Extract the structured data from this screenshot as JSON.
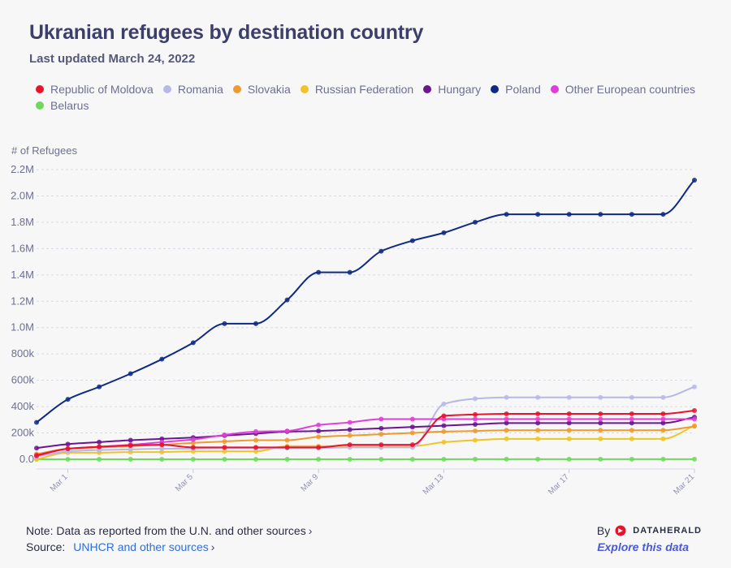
{
  "header": {
    "title": "Ukranian refugees by destination country",
    "subtitle": "Last updated March 24, 2022"
  },
  "y_unit_label": "# of Refugees",
  "footer": {
    "note": "Note: Data as reported from the U.N. and other sources",
    "source_label": "Source:",
    "source_link": "UNHCR and other sources",
    "by_label": "By",
    "brand": "DATAHERALD",
    "explore": "Explore this data",
    "chevron": "›"
  },
  "chart_data": {
    "type": "line",
    "title": "Ukranian refugees by destination country",
    "subtitle": "Last updated March 24, 2022",
    "ylabel": "# of Refugees",
    "ylim": [
      0,
      2200000
    ],
    "yticks": [
      0,
      200000,
      400000,
      600000,
      800000,
      1000000,
      1200000,
      1400000,
      1600000,
      1800000,
      2000000,
      2200000
    ],
    "ytick_labels": [
      "0.0",
      "200k",
      "400k",
      "600k",
      "800k",
      "1.0M",
      "1.2M",
      "1.4M",
      "1.6M",
      "1.8M",
      "2.0M",
      "2.2M"
    ],
    "x": [
      "Feb 28",
      "Mar 1",
      "Mar 2",
      "Mar 3",
      "Mar 4",
      "Mar 5",
      "Mar 6",
      "Mar 7",
      "Mar 8",
      "Mar 9",
      "Mar 10",
      "Mar 11",
      "Mar 12",
      "Mar 13",
      "Mar 14",
      "Mar 15",
      "Mar 16",
      "Mar 17",
      "Mar 18",
      "Mar 19",
      "Mar 20",
      "Mar 21"
    ],
    "xtick_labels": [
      "Mar 1",
      "Mar 5",
      "Mar 9",
      "Mar 13",
      "Mar 17",
      "Mar 21"
    ],
    "xtick_indices": [
      1,
      5,
      9,
      13,
      17,
      21
    ],
    "grid": true,
    "legend_position": "top",
    "series": [
      {
        "name": "Republic of Moldova",
        "color": "#e8132c",
        "values": [
          30000,
          80000,
          95000,
          105000,
          110000,
          90000,
          90000,
          90000,
          90000,
          90000,
          110000,
          110000,
          110000,
          330000,
          340000,
          345000,
          345000,
          345000,
          345000,
          345000,
          345000,
          370000
        ]
      },
      {
        "name": "Romania",
        "color": "#b8b8e8",
        "values": [
          20000,
          60000,
          70000,
          75000,
          80000,
          80000,
          85000,
          85000,
          85000,
          85000,
          90000,
          90000,
          90000,
          420000,
          460000,
          470000,
          470000,
          470000,
          470000,
          470000,
          470000,
          550000
        ]
      },
      {
        "name": "Slovakia",
        "color": "#ee9a2e",
        "values": [
          40000,
          80000,
          90000,
          100000,
          110000,
          125000,
          135000,
          145000,
          145000,
          170000,
          180000,
          190000,
          200000,
          210000,
          215000,
          220000,
          220000,
          220000,
          220000,
          220000,
          220000,
          250000
        ]
      },
      {
        "name": "Russian Federation",
        "color": "#f0c428",
        "values": [
          0,
          50000,
          50000,
          55000,
          55000,
          60000,
          60000,
          60000,
          100000,
          100000,
          100000,
          100000,
          100000,
          130000,
          145000,
          155000,
          155000,
          155000,
          155000,
          155000,
          155000,
          255000
        ]
      },
      {
        "name": "Hungary",
        "color": "#6a1690",
        "values": [
          85000,
          115000,
          130000,
          145000,
          155000,
          165000,
          180000,
          195000,
          210000,
          215000,
          225000,
          235000,
          245000,
          255000,
          265000,
          275000,
          275000,
          275000,
          275000,
          275000,
          275000,
          320000
        ]
      },
      {
        "name": "Poland",
        "color": "#0e2a84",
        "values": [
          280000,
          455000,
          550000,
          650000,
          760000,
          885000,
          1030000,
          1030000,
          1210000,
          1420000,
          1420000,
          1580000,
          1660000,
          1720000,
          1800000,
          1860000,
          1860000,
          1860000,
          1860000,
          1860000,
          1860000,
          2120000
        ]
      },
      {
        "name": "Other European countries",
        "color": "#e03ed8",
        "values": [
          25000,
          80000,
          95000,
          110000,
          130000,
          150000,
          185000,
          210000,
          215000,
          260000,
          280000,
          305000,
          305000,
          305000,
          305000,
          305000,
          305000,
          305000,
          305000,
          305000,
          305000,
          305000
        ]
      },
      {
        "name": "Belarus",
        "color": "#6fd95c",
        "values": [
          0,
          0,
          0,
          0,
          0,
          0,
          0,
          0,
          0,
          0,
          0,
          0,
          0,
          0,
          1000,
          1000,
          1000,
          1000,
          1000,
          1000,
          1000,
          1000
        ]
      }
    ]
  }
}
